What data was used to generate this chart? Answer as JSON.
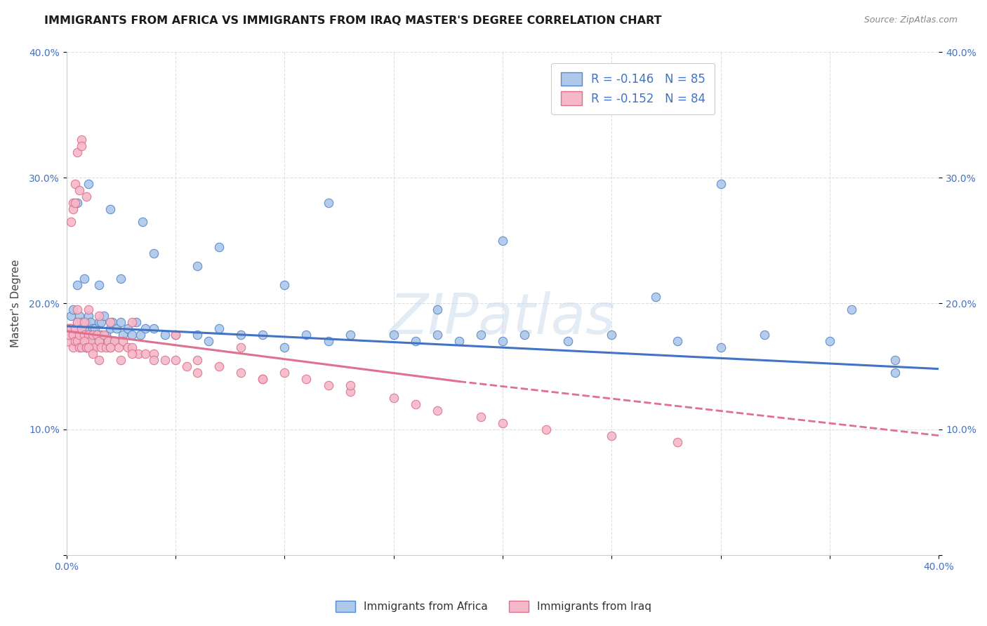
{
  "title": "IMMIGRANTS FROM AFRICA VS IMMIGRANTS FROM IRAQ MASTER'S DEGREE CORRELATION CHART",
  "source": "Source: ZipAtlas.com",
  "ylabel": "Master's Degree",
  "xlim": [
    0.0,
    0.4
  ],
  "ylim": [
    0.0,
    0.4
  ],
  "yticks": [
    0.0,
    0.1,
    0.2,
    0.3,
    0.4
  ],
  "ytick_labels": [
    "",
    "10.0%",
    "20.0%",
    "30.0%",
    "40.0%"
  ],
  "xticks": [
    0.0,
    0.05,
    0.1,
    0.15,
    0.2,
    0.25,
    0.3,
    0.35,
    0.4
  ],
  "xtick_labels": [
    "0.0%",
    "",
    "",
    "",
    "",
    "",
    "",
    "",
    "40.0%"
  ],
  "legend_africa_label": "Immigrants from Africa",
  "legend_iraq_label": "Immigrants from Iraq",
  "legend_africa_R": "-0.146",
  "legend_africa_N": "85",
  "legend_iraq_R": "-0.152",
  "legend_iraq_N": "84",
  "color_africa_fill": "#adc8e8",
  "color_iraq_fill": "#f5b8c8",
  "color_africa_edge": "#5588cc",
  "color_iraq_edge": "#dd7090",
  "color_africa_line": "#4472C4",
  "color_iraq_line": "#E07090",
  "color_title": "#1a1a1a",
  "color_source": "#888888",
  "color_tick": "#4472C4",
  "watermark": "ZIPatlas",
  "africa_x": [
    0.002,
    0.003,
    0.004,
    0.004,
    0.005,
    0.006,
    0.006,
    0.007,
    0.007,
    0.008,
    0.008,
    0.009,
    0.009,
    0.01,
    0.01,
    0.011,
    0.011,
    0.012,
    0.012,
    0.013,
    0.013,
    0.014,
    0.015,
    0.015,
    0.016,
    0.016,
    0.017,
    0.018,
    0.019,
    0.02,
    0.021,
    0.022,
    0.023,
    0.025,
    0.026,
    0.028,
    0.03,
    0.032,
    0.034,
    0.036,
    0.04,
    0.045,
    0.05,
    0.06,
    0.065,
    0.07,
    0.08,
    0.09,
    0.1,
    0.11,
    0.12,
    0.13,
    0.15,
    0.16,
    0.17,
    0.18,
    0.19,
    0.2,
    0.21,
    0.23,
    0.25,
    0.28,
    0.3,
    0.32,
    0.35,
    0.38,
    0.005,
    0.008,
    0.015,
    0.025,
    0.04,
    0.07,
    0.12,
    0.2,
    0.3,
    0.38,
    0.005,
    0.01,
    0.02,
    0.035,
    0.06,
    0.1,
    0.17,
    0.27,
    0.36
  ],
  "africa_y": [
    0.19,
    0.195,
    0.18,
    0.175,
    0.185,
    0.19,
    0.175,
    0.185,
    0.17,
    0.18,
    0.175,
    0.185,
    0.165,
    0.19,
    0.18,
    0.185,
    0.175,
    0.18,
    0.165,
    0.18,
    0.17,
    0.175,
    0.185,
    0.17,
    0.185,
    0.175,
    0.19,
    0.175,
    0.17,
    0.18,
    0.185,
    0.17,
    0.18,
    0.185,
    0.175,
    0.18,
    0.175,
    0.185,
    0.175,
    0.18,
    0.18,
    0.175,
    0.175,
    0.175,
    0.17,
    0.18,
    0.175,
    0.175,
    0.165,
    0.175,
    0.17,
    0.175,
    0.175,
    0.17,
    0.175,
    0.17,
    0.175,
    0.17,
    0.175,
    0.17,
    0.175,
    0.17,
    0.165,
    0.175,
    0.17,
    0.145,
    0.215,
    0.22,
    0.215,
    0.22,
    0.24,
    0.245,
    0.28,
    0.25,
    0.295,
    0.155,
    0.28,
    0.295,
    0.275,
    0.265,
    0.23,
    0.215,
    0.195,
    0.205,
    0.195
  ],
  "africa_sizes": [
    80,
    80,
    80,
    80,
    80,
    80,
    80,
    80,
    80,
    80,
    80,
    80,
    80,
    80,
    80,
    80,
    80,
    80,
    80,
    80,
    80,
    80,
    80,
    80,
    80,
    80,
    80,
    80,
    80,
    80,
    80,
    80,
    80,
    80,
    80,
    80,
    80,
    80,
    80,
    80,
    80,
    80,
    80,
    80,
    80,
    80,
    80,
    80,
    80,
    80,
    80,
    80,
    80,
    80,
    80,
    80,
    80,
    80,
    80,
    80,
    80,
    80,
    80,
    80,
    80,
    80,
    80,
    80,
    80,
    80,
    80,
    80,
    80,
    80,
    80,
    80,
    80,
    80,
    80,
    80,
    80,
    80,
    80,
    80,
    80
  ],
  "iraq_x": [
    0.001,
    0.002,
    0.003,
    0.003,
    0.004,
    0.004,
    0.005,
    0.005,
    0.006,
    0.006,
    0.007,
    0.007,
    0.008,
    0.009,
    0.009,
    0.01,
    0.011,
    0.012,
    0.013,
    0.014,
    0.015,
    0.016,
    0.017,
    0.018,
    0.019,
    0.02,
    0.022,
    0.024,
    0.026,
    0.028,
    0.03,
    0.033,
    0.036,
    0.04,
    0.045,
    0.05,
    0.055,
    0.06,
    0.07,
    0.08,
    0.09,
    0.1,
    0.11,
    0.12,
    0.13,
    0.15,
    0.16,
    0.17,
    0.19,
    0.2,
    0.22,
    0.25,
    0.28,
    0.005,
    0.008,
    0.01,
    0.015,
    0.02,
    0.03,
    0.05,
    0.08,
    0.003,
    0.004,
    0.005,
    0.007,
    0.007,
    0.008,
    0.009,
    0.01,
    0.012,
    0.015,
    0.02,
    0.025,
    0.03,
    0.04,
    0.06,
    0.09,
    0.13,
    0.002,
    0.003,
    0.004,
    0.006,
    0.009
  ],
  "iraq_y": [
    0.175,
    0.18,
    0.165,
    0.175,
    0.18,
    0.17,
    0.185,
    0.17,
    0.175,
    0.165,
    0.18,
    0.165,
    0.175,
    0.17,
    0.165,
    0.175,
    0.17,
    0.175,
    0.165,
    0.175,
    0.17,
    0.165,
    0.175,
    0.165,
    0.17,
    0.165,
    0.17,
    0.165,
    0.17,
    0.165,
    0.165,
    0.16,
    0.16,
    0.16,
    0.155,
    0.155,
    0.15,
    0.155,
    0.15,
    0.145,
    0.14,
    0.145,
    0.14,
    0.135,
    0.13,
    0.125,
    0.12,
    0.115,
    0.11,
    0.105,
    0.1,
    0.095,
    0.09,
    0.195,
    0.185,
    0.195,
    0.19,
    0.185,
    0.185,
    0.175,
    0.165,
    0.28,
    0.295,
    0.32,
    0.33,
    0.325,
    0.17,
    0.165,
    0.165,
    0.16,
    0.155,
    0.165,
    0.155,
    0.16,
    0.155,
    0.145,
    0.14,
    0.135,
    0.265,
    0.275,
    0.28,
    0.29,
    0.285
  ],
  "iraq_sizes": [
    80,
    80,
    80,
    80,
    80,
    80,
    80,
    80,
    80,
    80,
    80,
    80,
    80,
    80,
    80,
    80,
    80,
    80,
    80,
    80,
    80,
    80,
    80,
    80,
    80,
    80,
    80,
    80,
    80,
    80,
    80,
    80,
    80,
    80,
    80,
    80,
    80,
    80,
    80,
    80,
    80,
    80,
    80,
    80,
    80,
    80,
    80,
    80,
    80,
    80,
    80,
    80,
    80,
    80,
    80,
    80,
    80,
    80,
    80,
    80,
    80,
    80,
    80,
    80,
    80,
    80,
    80,
    80,
    80,
    80,
    80,
    80,
    80,
    80,
    80,
    80,
    80,
    80,
    80,
    80,
    80,
    80,
    80
  ],
  "iraq_large_x": [
    0.001
  ],
  "iraq_large_y": [
    0.175
  ],
  "iraq_large_size": [
    500
  ],
  "africa_line_x0": 0.0,
  "africa_line_x1": 0.4,
  "africa_line_y0": 0.182,
  "africa_line_y1": 0.148,
  "iraq_line_solid_x0": 0.0,
  "iraq_line_solid_x1": 0.18,
  "iraq_line_solid_y0": 0.178,
  "iraq_line_solid_y1": 0.138,
  "iraq_line_dash_x0": 0.18,
  "iraq_line_dash_x1": 0.4,
  "iraq_line_dash_y0": 0.138,
  "iraq_line_dash_y1": 0.095,
  "background_color": "#ffffff",
  "grid_color": "#e0e0e0",
  "title_fontsize": 11.5,
  "label_fontsize": 11,
  "tick_fontsize": 10
}
